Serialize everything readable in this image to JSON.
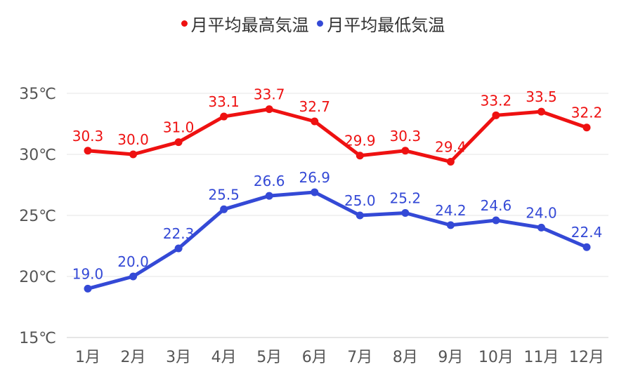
{
  "chart_data": {
    "type": "line",
    "categories": [
      "1月",
      "2月",
      "3月",
      "4月",
      "5月",
      "6月",
      "7月",
      "8月",
      "9月",
      "10月",
      "11月",
      "12月"
    ],
    "series": [
      {
        "name": "月平均最高気温",
        "color": "#ee1111",
        "values": [
          30.3,
          30.0,
          31.0,
          33.1,
          33.7,
          32.7,
          29.9,
          30.3,
          29.4,
          33.2,
          33.5,
          32.2
        ]
      },
      {
        "name": "月平均最低気温",
        "color": "#3449d6",
        "values": [
          19.0,
          20.0,
          22.3,
          25.5,
          26.6,
          26.9,
          25.0,
          25.2,
          24.2,
          24.6,
          24.0,
          22.4
        ]
      }
    ],
    "yticks": [
      "15℃",
      "20℃",
      "25℃",
      "30℃",
      "35℃"
    ],
    "ylim": [
      15,
      35
    ],
    "grid": true,
    "legend": "top-center",
    "data_labels": true
  }
}
